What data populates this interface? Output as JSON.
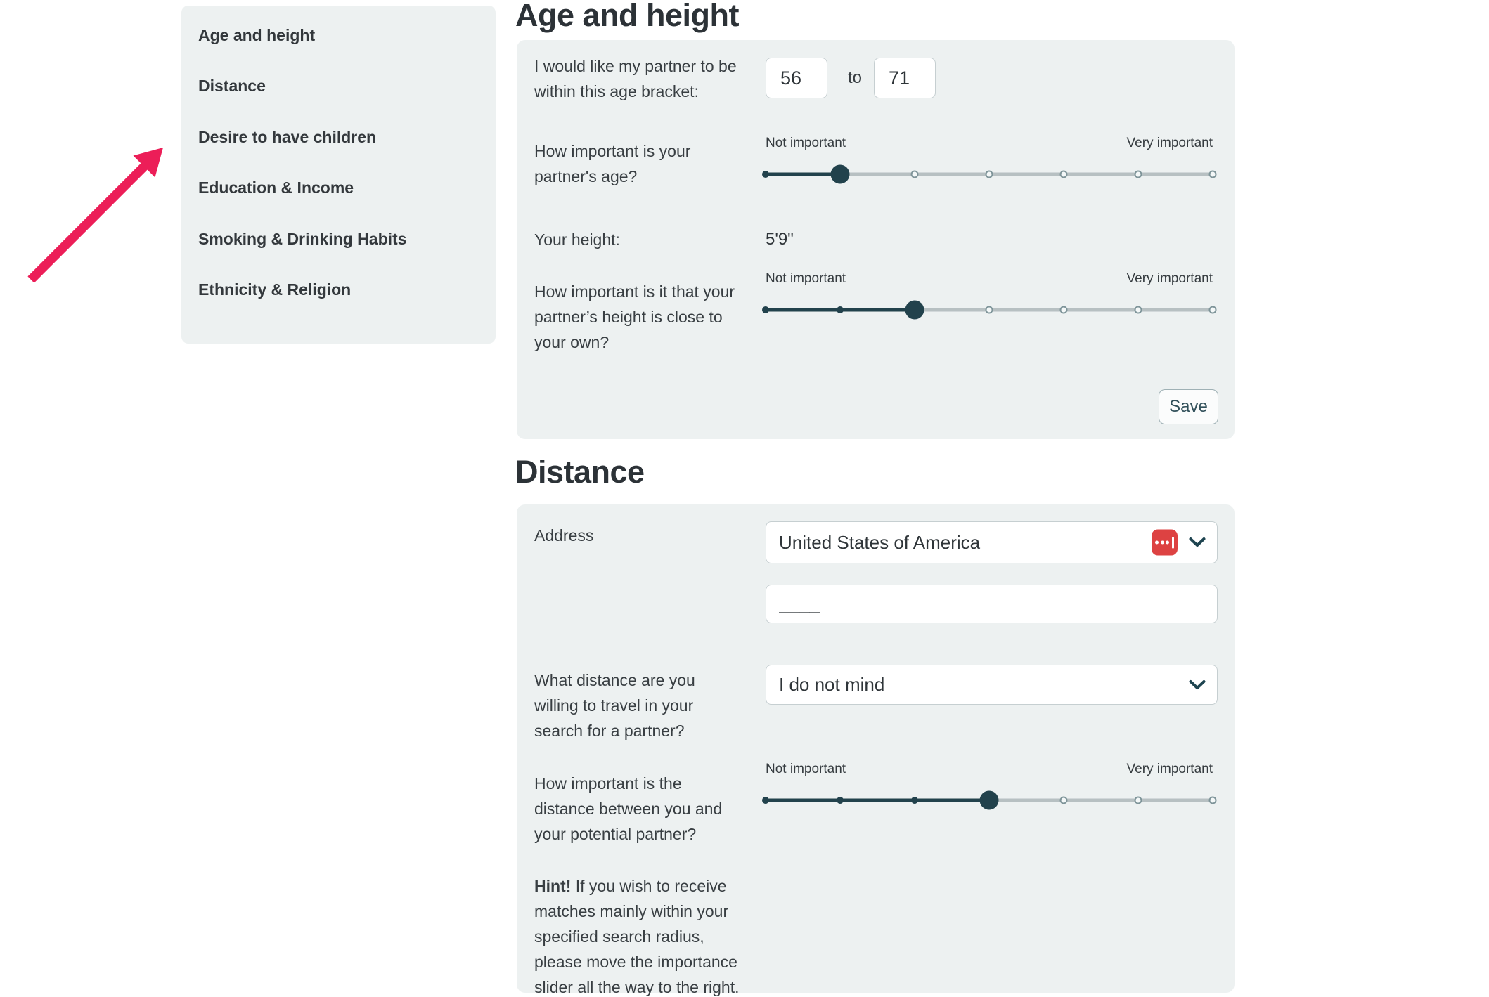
{
  "colors": {
    "accent_teal": "#22424c",
    "panel_bg": "#edf1f1",
    "arrow_pink": "#ec1e58",
    "autofill_icon_red": "#dd4242"
  },
  "sidebar": {
    "items": [
      "Age and height",
      "Distance",
      "Desire to have children",
      "Education & Income",
      "Smoking & Drinking Habits",
      "Ethnicity & Religion"
    ]
  },
  "age_section": {
    "heading": "Age and height",
    "age_bracket": {
      "label": "I would like my partner to be within this age bracket:",
      "min": "56",
      "to_label": "to",
      "max": "71"
    },
    "age_importance": {
      "question": "How important is your partner's age?",
      "left_label": "Not important",
      "right_label": "Very important",
      "stops": 7,
      "value_index": 1
    },
    "height": {
      "label": "Your height:",
      "value": "5'9\""
    },
    "height_importance": {
      "question": "How important is it that your partner’s height is close to your own?",
      "left_label": "Not important",
      "right_label": "Very important",
      "stops": 7,
      "value_index": 2
    },
    "save_label": "Save"
  },
  "distance_section": {
    "heading": "Distance",
    "address": {
      "label": "Address",
      "country": "United States of America",
      "street_value": "____"
    },
    "travel_distance": {
      "question": "What distance are you willing to travel in your search for a partner?",
      "selected": "I do not mind"
    },
    "distance_importance": {
      "question": "How important is the distance between you and your potential partner?",
      "left_label": "Not important",
      "right_label": "Very important",
      "stops": 7,
      "value_index": 3
    },
    "hint": {
      "lead": "Hint!",
      "text": " If you wish to receive matches mainly within your specified search radius, please move the importance slider all the way to the right."
    }
  }
}
